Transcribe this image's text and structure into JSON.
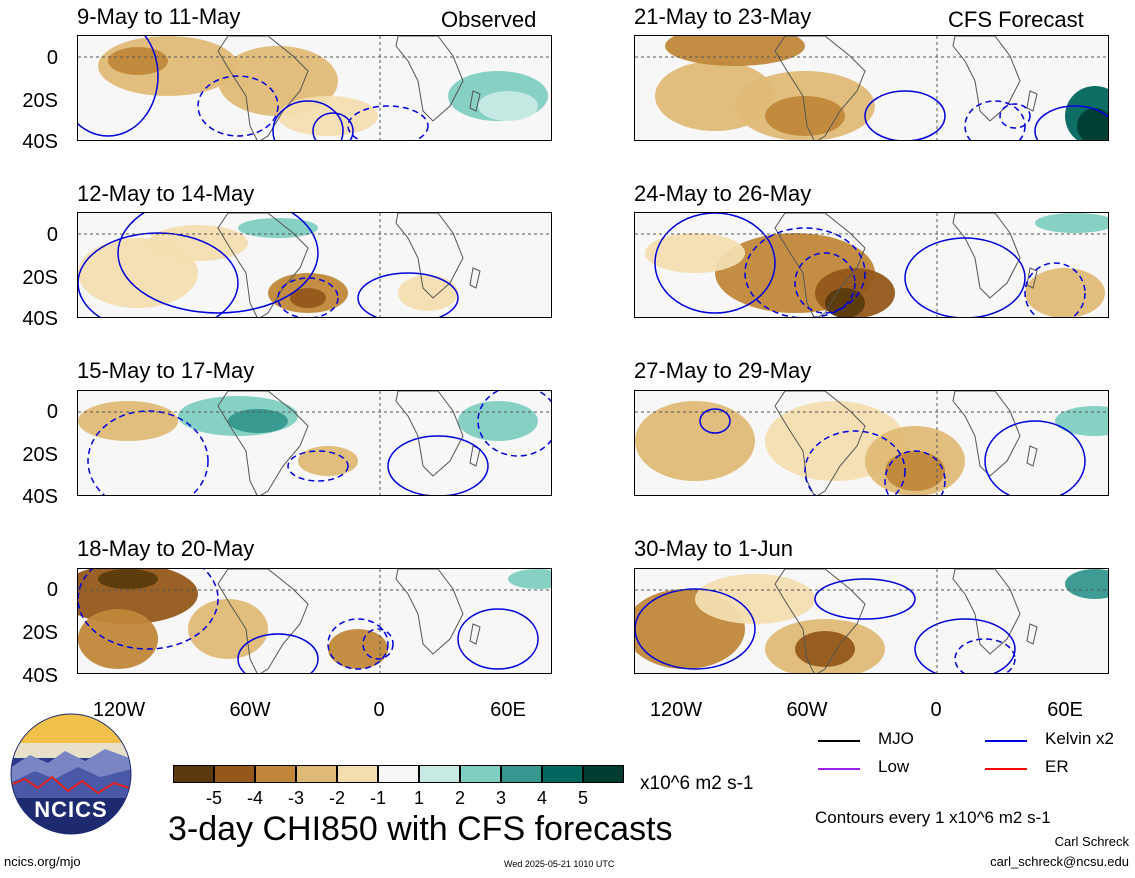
{
  "header": {
    "left_label": "Observed",
    "right_label": "CFS Forecast"
  },
  "panels": {
    "left": [
      "9-May to 11-May",
      "12-May to 14-May",
      "15-May to 17-May",
      "18-May to 20-May"
    ],
    "right": [
      "21-May to 23-May",
      "24-May to 26-May",
      "27-May to 29-May",
      "30-May to 1-Jun"
    ]
  },
  "axes": {
    "y_ticks": [
      "0",
      "20S",
      "40S"
    ],
    "x_ticks": [
      "120W",
      "60W",
      "0",
      "60E"
    ]
  },
  "colorbar": {
    "colors": [
      "#5a3a0d",
      "#94591a",
      "#c0873a",
      "#dfba76",
      "#f3deb0",
      "#f7f7f7",
      "#c7eae4",
      "#80cdc1",
      "#35978f",
      "#01665e",
      "#003c30"
    ],
    "ticks": [
      "-5",
      "-4",
      "-3",
      "-2",
      "-1",
      "1",
      "2",
      "3",
      "4",
      "5"
    ],
    "unit": "x10^6 m2 s-1"
  },
  "legend": {
    "items": [
      {
        "label": "MJO",
        "color": "#000000"
      },
      {
        "label": "Kelvin x2",
        "color": "#0000dd"
      },
      {
        "label": "Low",
        "color": "#a020f0"
      },
      {
        "label": "ER",
        "color": "#ff0000"
      }
    ],
    "contours_note": "Contours every 1 x10^6 m2 s-1"
  },
  "footer": {
    "main_title": "3-day CHI850 with CFS forecasts",
    "site": "ncics.org/mjo",
    "timestamp": "Wed 2025-05-21 1010 UTC",
    "author": "Carl Schreck",
    "email": "carl_schreck@ncsu.edu",
    "logo_text": "NCICS"
  }
}
